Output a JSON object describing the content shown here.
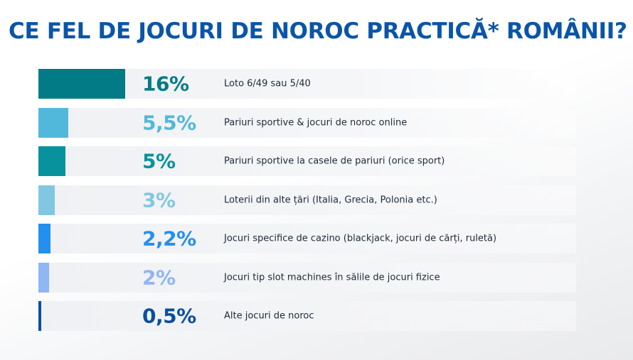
{
  "title": "CE FEL DE JOCURI DE NOROC PRACTICĂ* ROMÂNII?",
  "chart_data": {
    "type": "bar",
    "orientation": "horizontal",
    "title": "CE FEL DE JOCURI DE NOROC PRACTICĂ* ROMÂNII?",
    "unit": "%",
    "items": [
      {
        "label": "Loto 6/49 sau 5/40",
        "value": 16,
        "value_label": "16%",
        "color": "#037b86"
      },
      {
        "label": "Pariuri sportive & jocuri de noroc online",
        "value": 5.5,
        "value_label": "5,5%",
        "color": "#52b8db"
      },
      {
        "label": "Pariuri sportive la casele de pariuri (orice sport)",
        "value": 5,
        "value_label": "5%",
        "color": "#07929e"
      },
      {
        "label": "Loterii din alte țări (Italia, Grecia, Polonia etc.)",
        "value": 3,
        "value_label": "3%",
        "color": "#82c7e1"
      },
      {
        "label": "Jocuri specifice de cazino (blackjack, jocuri de cărți, ruletă)",
        "value": 2.2,
        "value_label": "2,2%",
        "color": "#2390ee"
      },
      {
        "label": "Jocuri tip slot machines în sălile de jocuri fizice",
        "value": 2,
        "value_label": "2%",
        "color": "#8fb6f6"
      },
      {
        "label": "Alte jocuri de noroc",
        "value": 0.5,
        "value_label": "0,5%",
        "color": "#0a4fa0"
      }
    ]
  }
}
